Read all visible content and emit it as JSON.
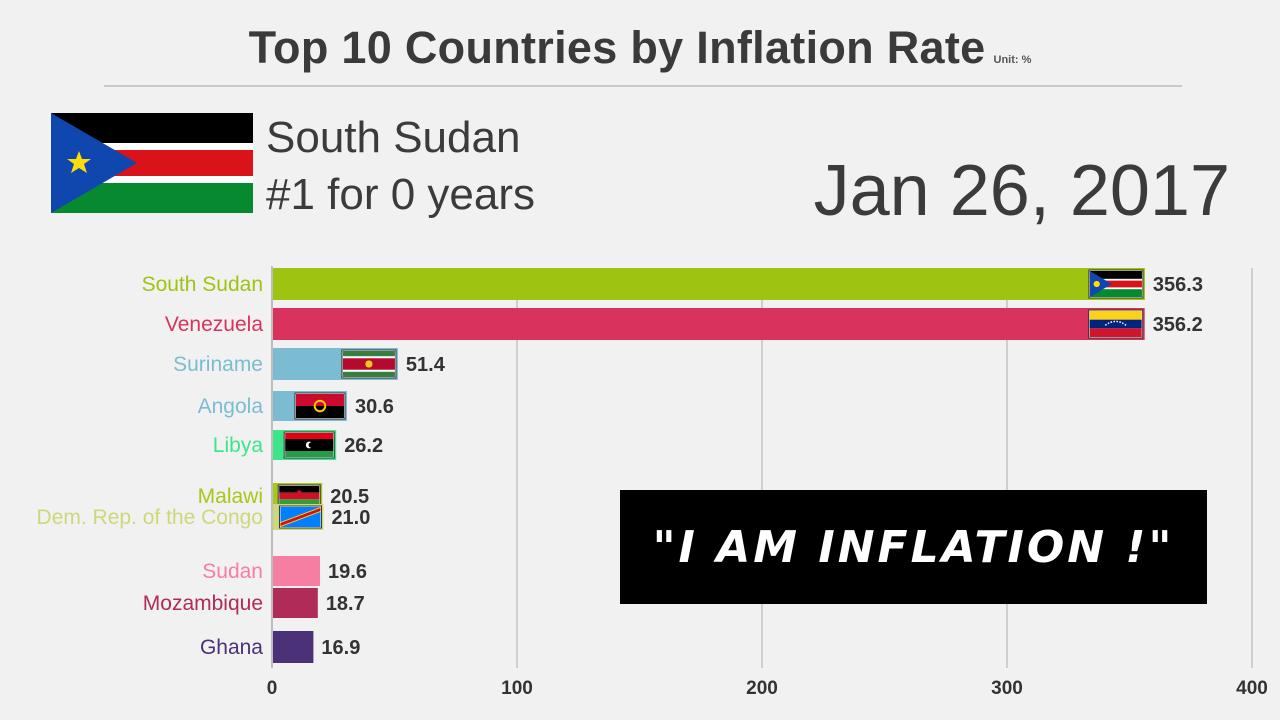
{
  "header": {
    "title": "Top 10 Countries by Inflation Rate",
    "unit": "Unit: %"
  },
  "leader": {
    "name": "South Sudan",
    "years": "#1 for 0 years",
    "flag_icon": "south-sudan-flag-icon"
  },
  "date": "Jan 26, 2017",
  "caption": "\"I AM INFLATION !\"",
  "chart_data": {
    "type": "bar",
    "orientation": "horizontal",
    "xlim": [
      0,
      400
    ],
    "xticks": [
      "0",
      "100",
      "200",
      "300",
      "400"
    ],
    "grid": "vertical",
    "categories": [
      "South Sudan",
      "Venezuela",
      "Suriname",
      "Angola",
      "Libya",
      "Malawi",
      "Dem. Rep. of the Congo",
      "Sudan",
      "Mozambique",
      "Ghana"
    ],
    "values": [
      356.3,
      356.2,
      51.4,
      30.6,
      26.2,
      20.5,
      21.0,
      19.6,
      18.7,
      16.9
    ],
    "value_labels": [
      "356.3",
      "356.2",
      "51.4",
      "30.6",
      "26.2",
      "20.5",
      "21.0",
      "19.6",
      "18.7",
      "16.9"
    ],
    "colors": [
      "#9dc410",
      "#d9335d",
      "#7bbcd2",
      "#7bbcd2",
      "#3de58a",
      "#a7c81a",
      "#cfd878",
      "#f57ea2",
      "#b12b58",
      "#4a3178"
    ],
    "flags": [
      "south-sudan-flag-icon",
      "venezuela-flag-icon",
      "suriname-flag-icon",
      "angola-flag-icon",
      "libya-flag-icon",
      "malawi-flag-icon",
      "drc-flag-icon",
      "",
      "",
      ""
    ]
  }
}
